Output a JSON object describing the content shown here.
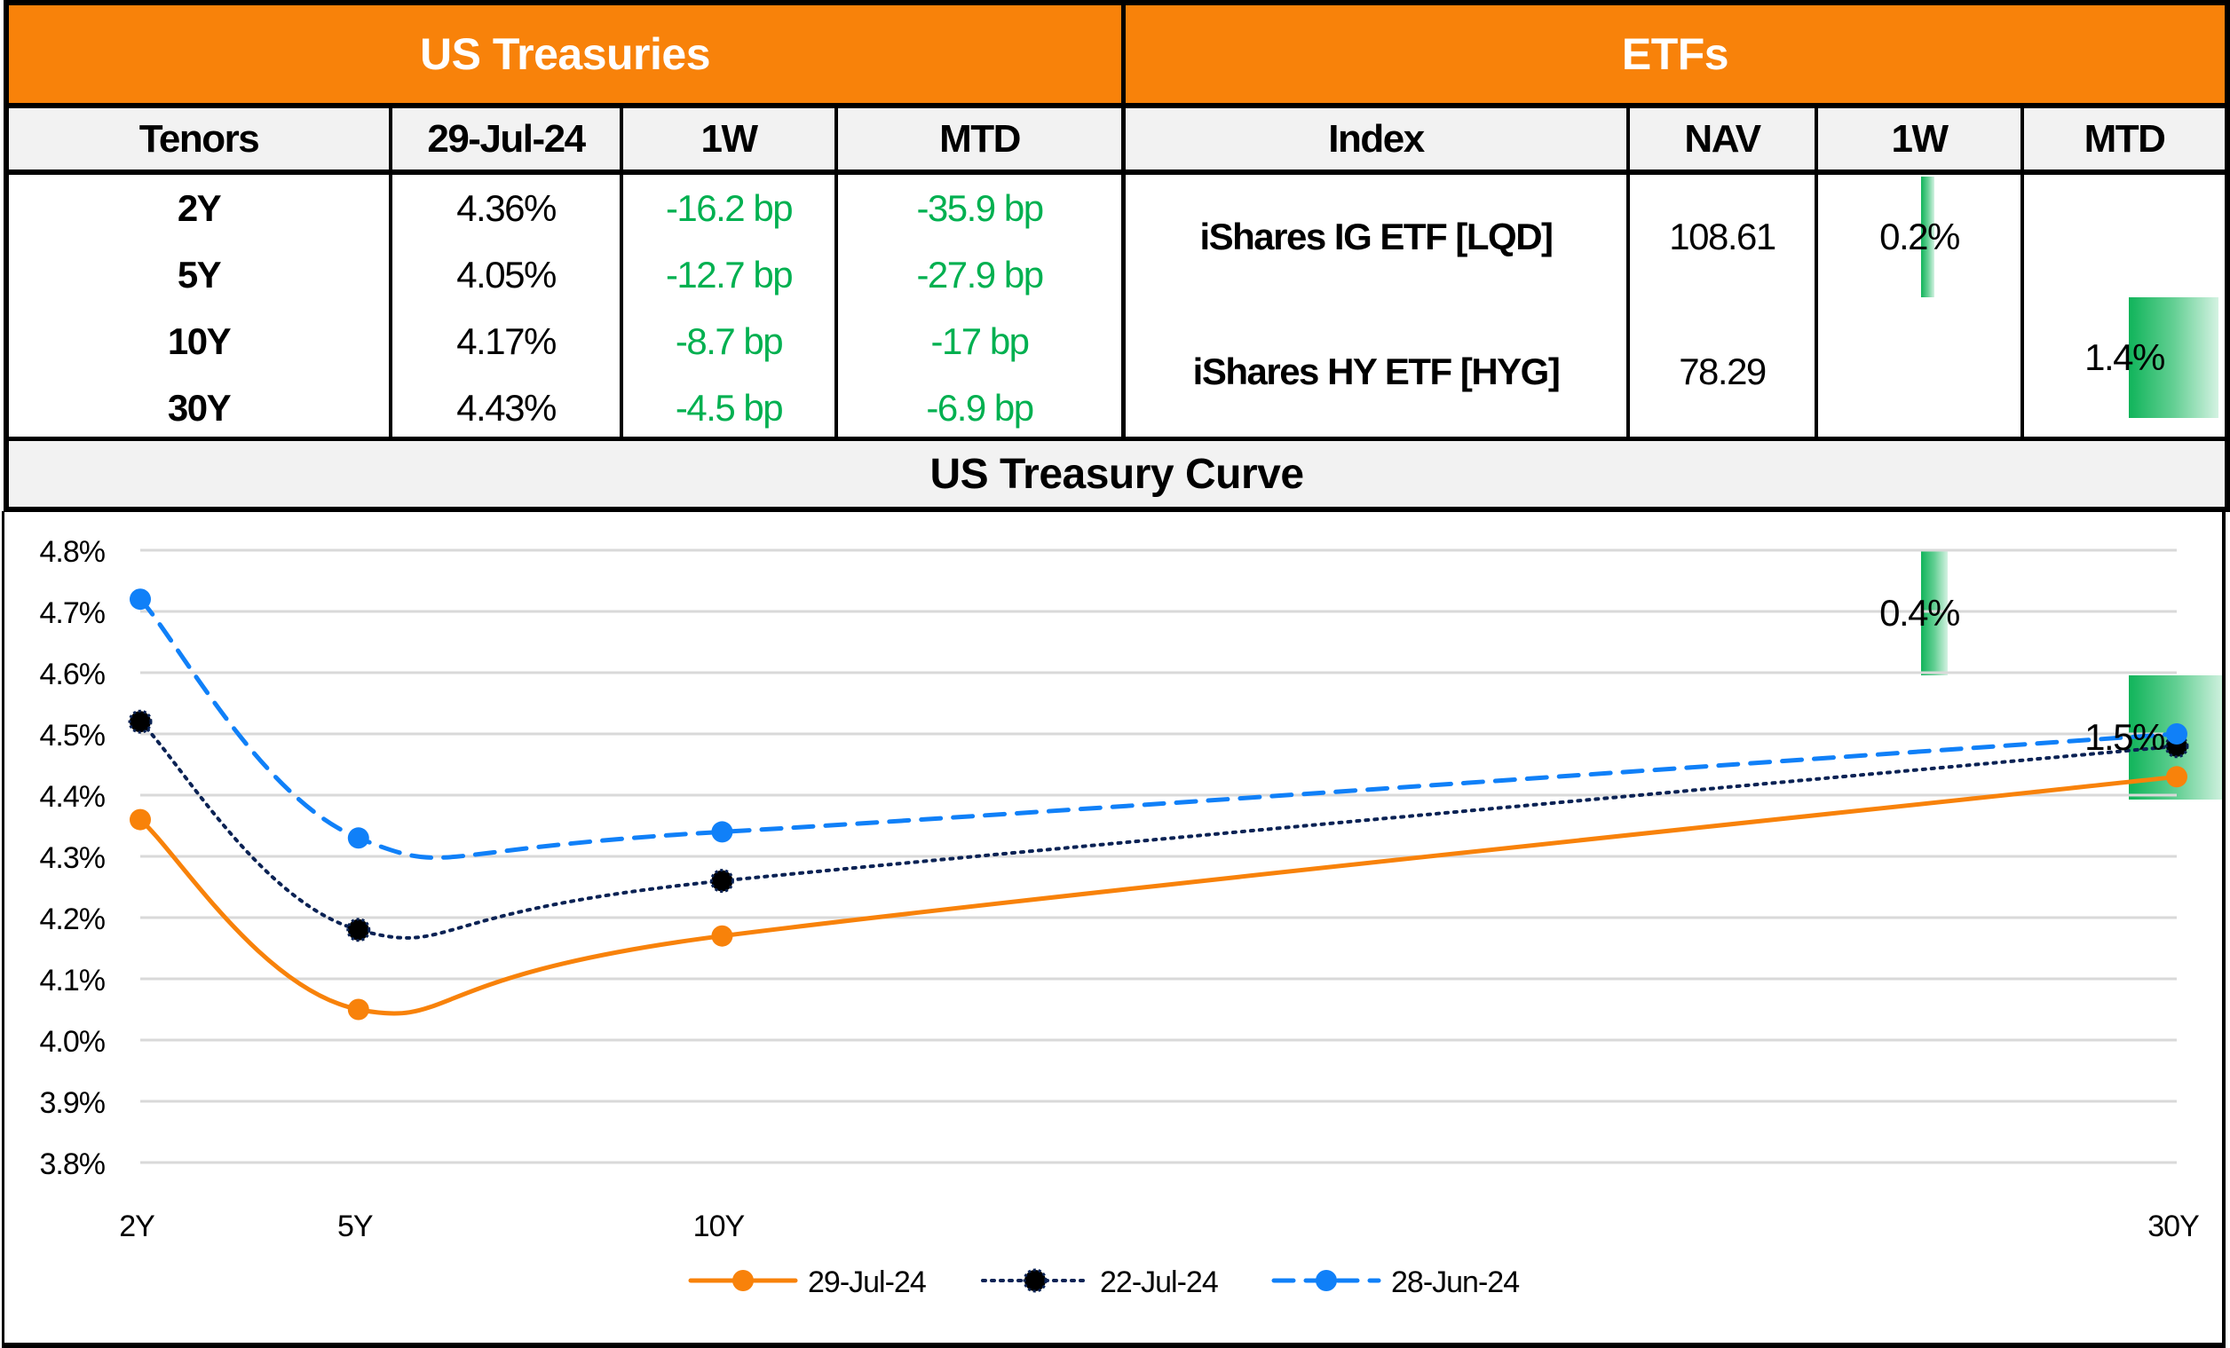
{
  "treasuries": {
    "title": "US Treasuries",
    "headers": [
      "Tenors",
      "29-Jul-24",
      "1W",
      "MTD"
    ],
    "rows": [
      {
        "tenor": "2Y",
        "yield": "4.36%",
        "w1": "-16.2 bp",
        "mtd": "-35.9 bp"
      },
      {
        "tenor": "5Y",
        "yield": "4.05%",
        "w1": "-12.7 bp",
        "mtd": "-27.9 bp"
      },
      {
        "tenor": "10Y",
        "yield": "4.17%",
        "w1": "-8.7 bp",
        "mtd": "-17 bp"
      },
      {
        "tenor": "30Y",
        "yield": "4.43%",
        "w1": "-4.5 bp",
        "mtd": "-6.9 bp"
      }
    ]
  },
  "etfs": {
    "title": "ETFs",
    "headers": [
      "Index",
      "NAV",
      "1W",
      "MTD"
    ],
    "rows": [
      {
        "name": "iShares IG ETF [LQD]",
        "nav": "108.61",
        "w1": "0.2%",
        "mtd": "1.4%",
        "w1_value": 0.2,
        "mtd_value": 1.4
      },
      {
        "name": "iShares HY ETF [HYG]",
        "nav": "78.29",
        "w1": "0.4%",
        "mtd": "1.5%",
        "w1_value": 0.4,
        "mtd_value": 1.5
      }
    ]
  },
  "colors": {
    "header_orange": "#F8820A",
    "positive_green": "#00B050",
    "databar_green": "#10B45A"
  },
  "chart_data": {
    "type": "line",
    "title": "US Treasury Curve",
    "x_labels": [
      "2Y",
      "5Y",
      "10Y",
      "30Y"
    ],
    "x": [
      2,
      5,
      10,
      30
    ],
    "xlabel": "",
    "ylabel": "",
    "ylim": [
      3.8,
      4.8
    ],
    "yticks": [
      "4.8%",
      "4.7%",
      "4.6%",
      "4.5%",
      "4.4%",
      "4.3%",
      "4.2%",
      "4.1%",
      "4.0%",
      "3.9%",
      "3.8%"
    ],
    "ytick_values": [
      4.8,
      4.7,
      4.6,
      4.5,
      4.4,
      4.3,
      4.2,
      4.1,
      4.0,
      3.9,
      3.8
    ],
    "grid": true,
    "smoothed": true,
    "legend_position": "bottom",
    "series": [
      {
        "name": "29-Jul-24",
        "values": [
          4.36,
          4.05,
          4.17,
          4.43
        ],
        "color": "#F8820A",
        "style": "solid"
      },
      {
        "name": "22-Jul-24",
        "values": [
          4.52,
          4.18,
          4.26,
          4.48
        ],
        "color": "#0A2254",
        "style": "dotted"
      },
      {
        "name": "28-Jun-24",
        "values": [
          4.72,
          4.33,
          4.34,
          4.5
        ],
        "color": "#1080F8",
        "style": "dashed"
      }
    ]
  }
}
